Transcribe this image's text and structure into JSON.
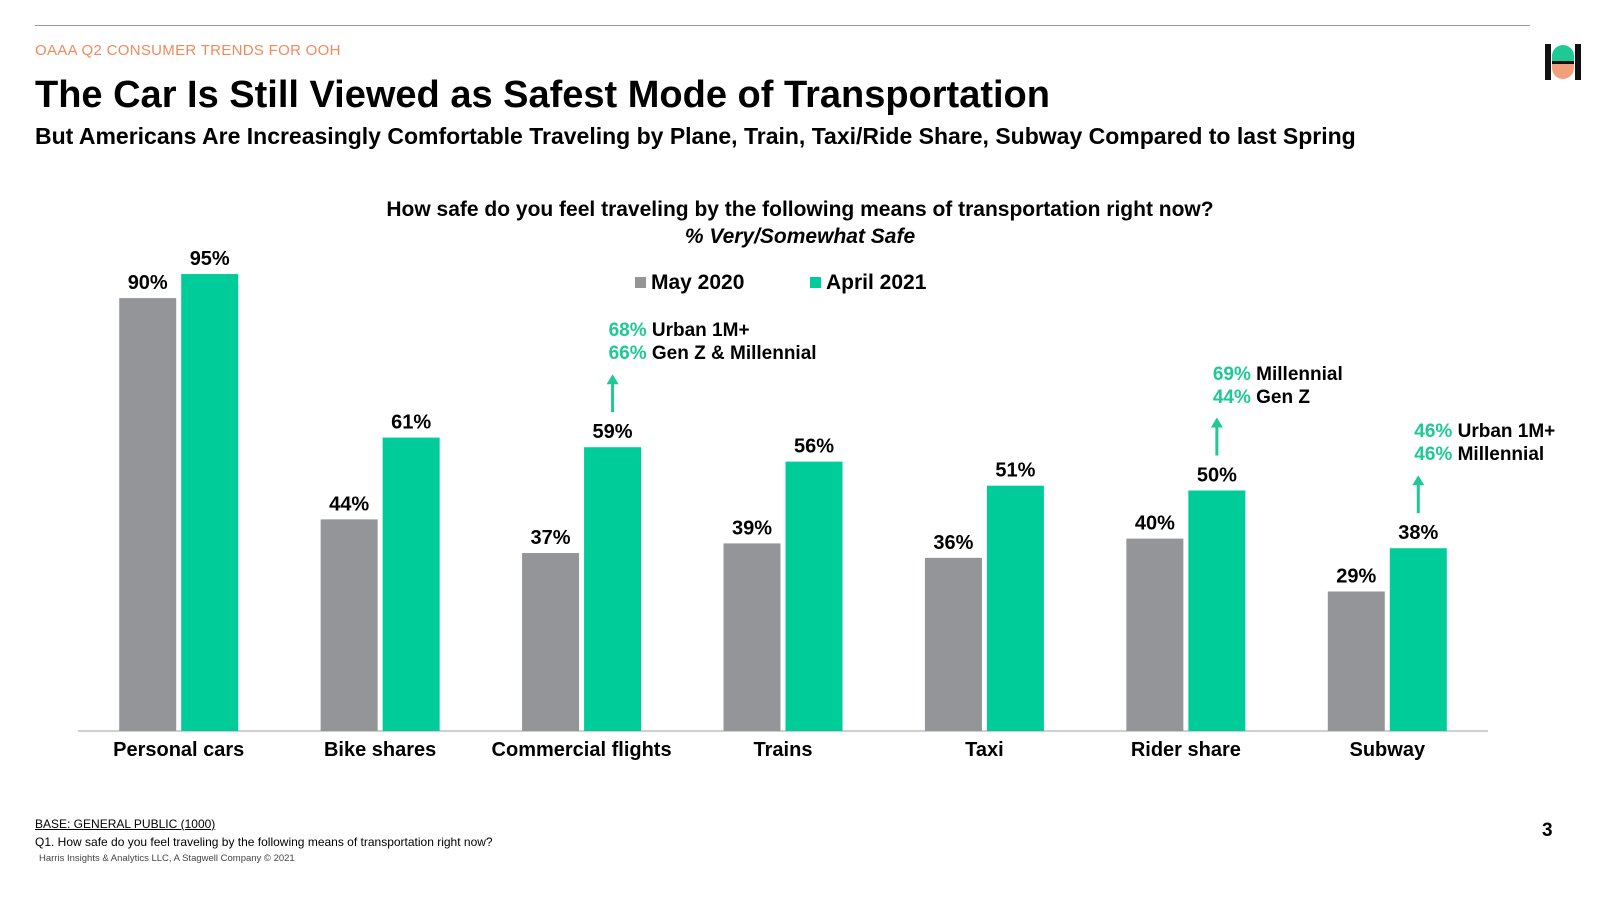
{
  "header": {
    "kicker": "OAAA Q2 CONSUMER TRENDS FOR OOH",
    "title": "The Car Is Still Viewed as Safest Mode of Transportation",
    "subtitle": "But Americans Are Increasingly Comfortable Traveling by Plane, Train, Taxi/Ride Share, Subway Compared to last Spring",
    "logo_icon": "harris-logo-icon"
  },
  "chart_data": {
    "type": "bar",
    "title": "How safe do you feel traveling by the following means of transportation right now?",
    "subtitle": "% Very/Somewhat Safe",
    "xlabel": "",
    "ylabel": "",
    "ylim": [
      0,
      100
    ],
    "grid": false,
    "legend_position": "top-center",
    "categories": [
      "Personal cars",
      "Bike shares",
      "Commercial flights",
      "Trains",
      "Taxi",
      "Rider share",
      "Subway"
    ],
    "series": [
      {
        "name": "May 2020",
        "color": "#939598",
        "values": [
          90,
          44,
          37,
          39,
          36,
          40,
          29
        ],
        "labels": [
          "90%",
          "44%",
          "37%",
          "39%",
          "36%",
          "40%",
          "29%"
        ]
      },
      {
        "name": "April 2021",
        "color": "#00cc99",
        "values": [
          95,
          61,
          59,
          56,
          51,
          50,
          38
        ],
        "labels": [
          "95%",
          "61%",
          "59%",
          "56%",
          "51%",
          "50%",
          "38%"
        ]
      }
    ],
    "annotations": [
      {
        "category": "Commercial flights",
        "lines": [
          {
            "pct": "68%",
            "label": "Urban 1M+"
          },
          {
            "pct": "66%",
            "label": "Gen Z & Millennial"
          }
        ]
      },
      {
        "category": "Rider share",
        "lines": [
          {
            "pct": "69%",
            "label": "Millennial"
          },
          {
            "pct": "44%",
            "label": "Gen Z"
          }
        ]
      },
      {
        "category": "Subway",
        "lines": [
          {
            "pct": "46%",
            "label": "Urban 1M+"
          },
          {
            "pct": "46%",
            "label": "Millennial"
          }
        ]
      }
    ]
  },
  "footer": {
    "base": "BASE: GENERAL PUBLIC (1000)",
    "question": "Q1. How safe do you feel traveling by the following means of transportation right now?",
    "copyright": "Harris Insights & Analytics LLC, A Stagwell Company © 2021",
    "page_number": "3"
  }
}
